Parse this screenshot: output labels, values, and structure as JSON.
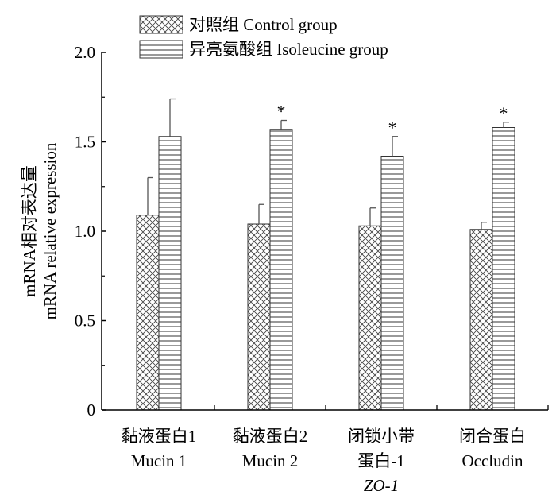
{
  "chart_data": {
    "type": "bar",
    "ylabel_lines": [
      "mRNA相对表达量",
      "mRNA relative expression"
    ],
    "ylim": [
      0,
      2.0
    ],
    "yticks": [
      {
        "value": 0,
        "label": "0"
      },
      {
        "value": 0.5,
        "label": "0.5"
      },
      {
        "value": 1.0,
        "label": "1.0"
      },
      {
        "value": 1.5,
        "label": "1.5"
      },
      {
        "value": 2.0,
        "label": "2.0"
      }
    ],
    "categories": [
      {
        "lines": [
          "黏液蛋白1",
          "Mucin 1"
        ]
      },
      {
        "lines": [
          "黏液蛋白2",
          "Mucin 2"
        ]
      },
      {
        "lines": [
          "闭锁小带",
          "蛋白-1",
          "ZO-1"
        ],
        "italic_line": 2
      },
      {
        "lines": [
          "闭合蛋白",
          "Occludin"
        ]
      }
    ],
    "series": [
      {
        "name": "对照组  Control group",
        "pattern": "crosshatch",
        "values": [
          1.09,
          1.04,
          1.03,
          1.01
        ],
        "errors": [
          0.21,
          0.11,
          0.1,
          0.04
        ],
        "markers": [
          "",
          "",
          "",
          ""
        ]
      },
      {
        "name": "异亮氨酸组 Isoleucine group",
        "pattern": "horizontal",
        "values": [
          1.53,
          1.57,
          1.42,
          1.58
        ],
        "errors": [
          0.21,
          0.05,
          0.11,
          0.03
        ],
        "markers": [
          "",
          "*",
          "*",
          "*"
        ]
      }
    ],
    "legend_position": "top-left",
    "grid": false
  }
}
